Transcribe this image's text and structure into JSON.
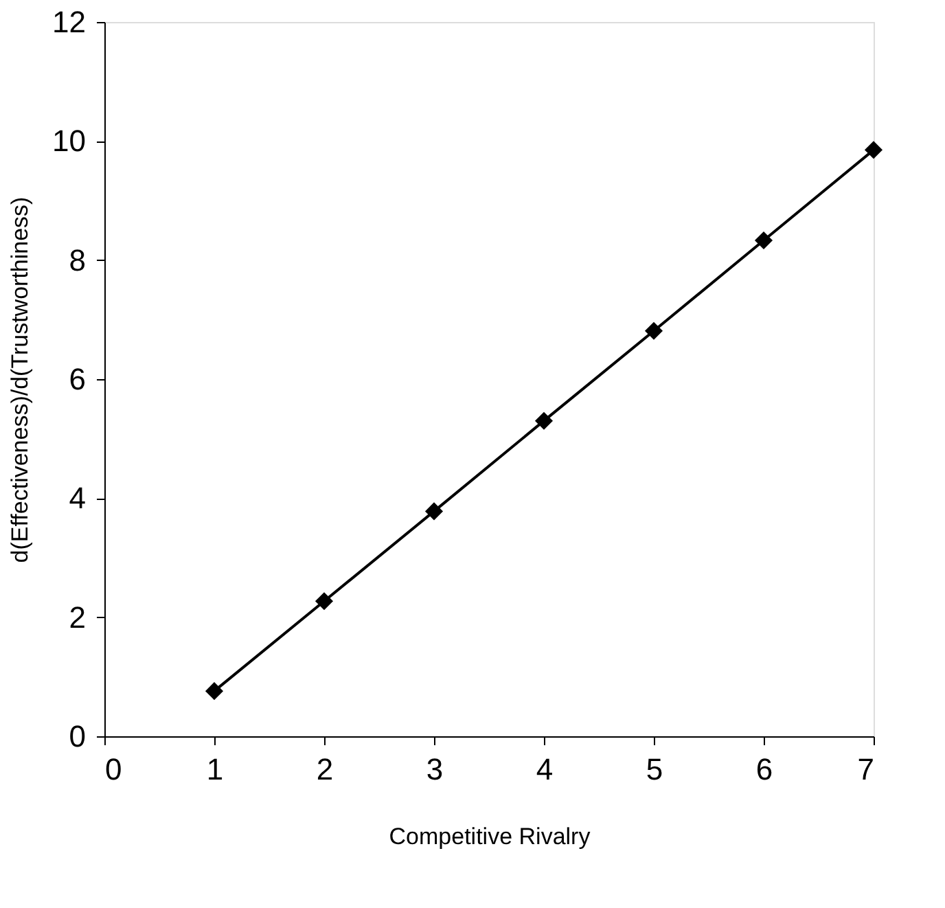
{
  "chart_data": {
    "type": "line",
    "xlabel": "Competitive Rivalry",
    "ylabel": "d(Effectiveness)/d(Trustworthiness)",
    "x": [
      1,
      2,
      3,
      4,
      5,
      6,
      7
    ],
    "series": [
      {
        "color": "#000000",
        "values": [
          0.76,
          2.27,
          3.78,
          5.3,
          6.81,
          8.33,
          9.85
        ]
      }
    ],
    "xlim": [
      0,
      7
    ],
    "xticks": [
      0,
      1,
      2,
      3,
      4,
      5,
      6,
      7
    ],
    "ylim": [
      0,
      12
    ],
    "yticks": [
      0,
      2,
      4,
      6,
      8,
      10,
      12
    ],
    "grid": false,
    "legend": false,
    "marker": "diamond",
    "line_style": "solid"
  }
}
